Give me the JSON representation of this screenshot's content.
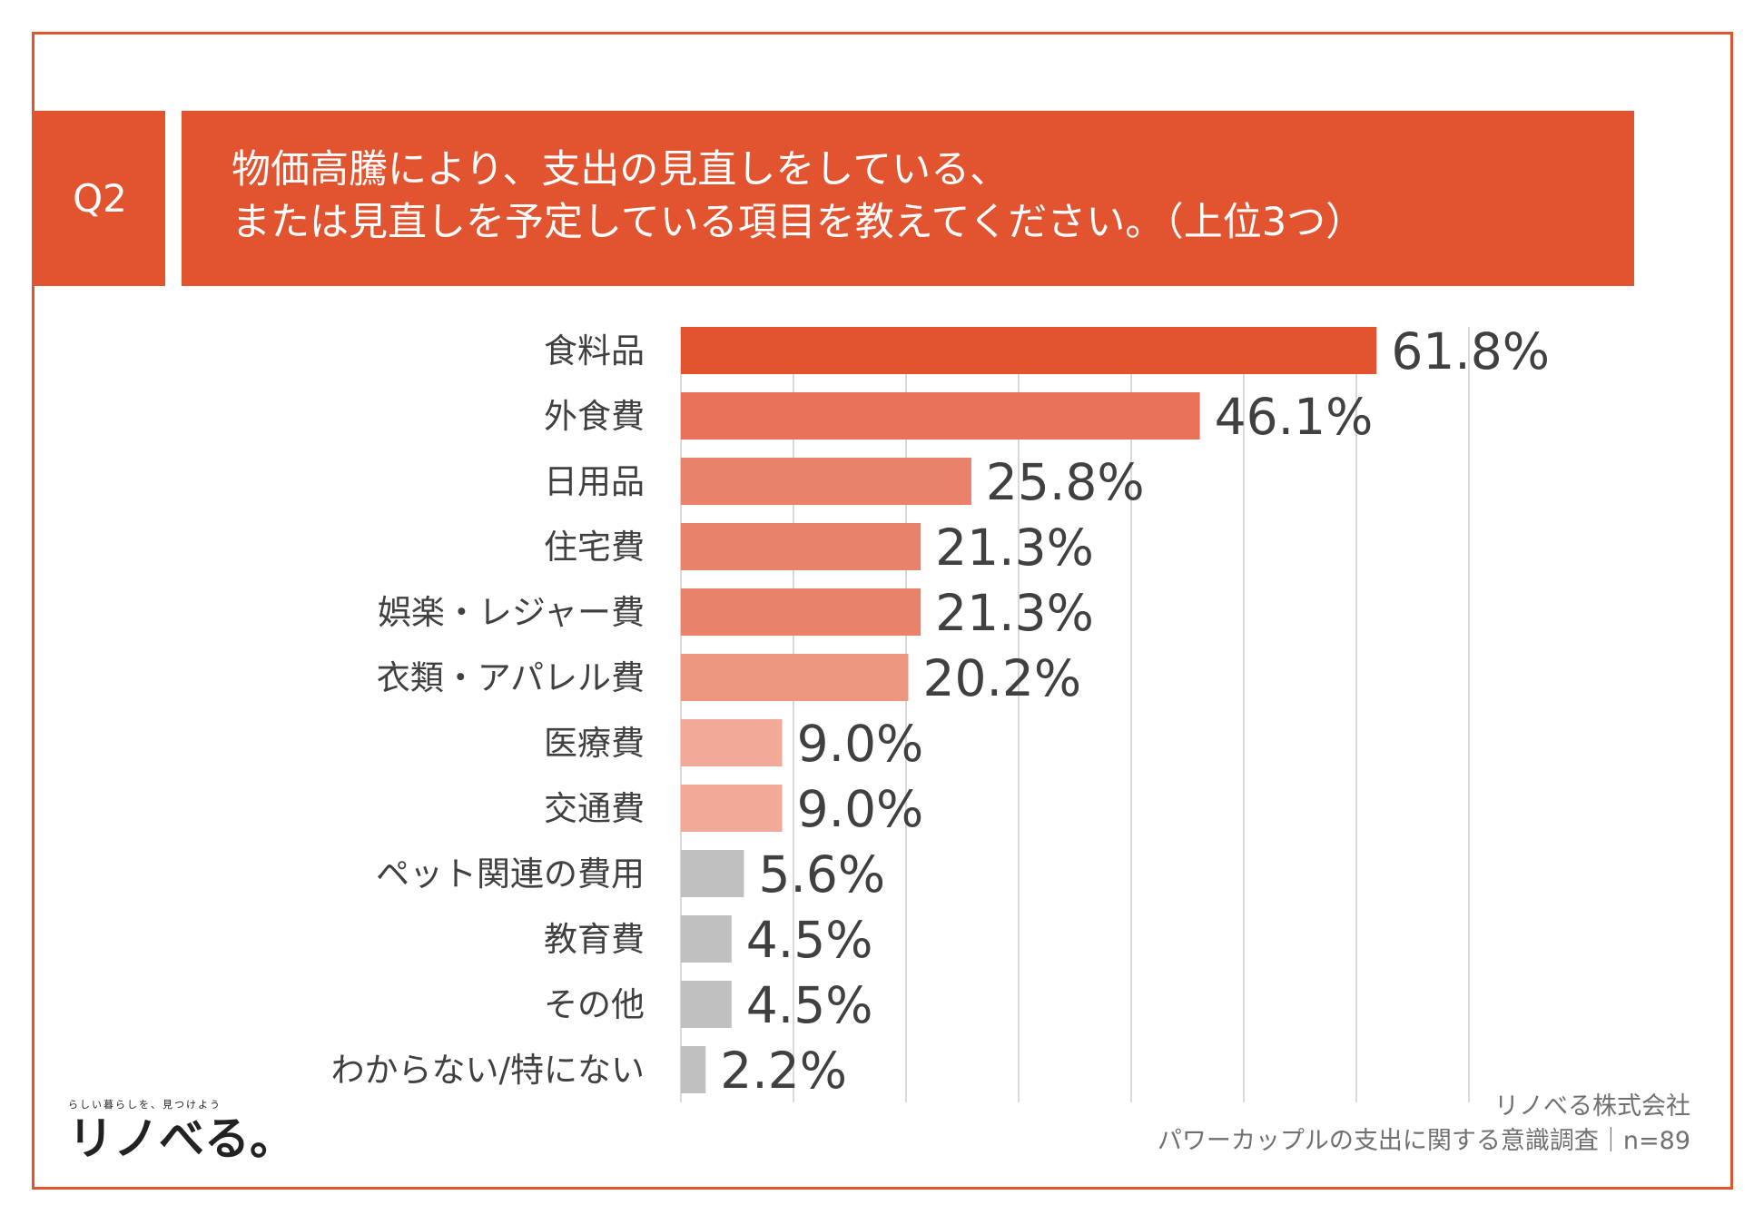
{
  "question": {
    "badge": "Q2",
    "line1": "物価高騰により、支出の見直しをしている、",
    "line2": "または見直しを予定している項目を教えてください。（上位3つ）"
  },
  "colors": {
    "accent": "#e2542f",
    "gray_bar": "#c0c0c0",
    "grid": "#d9d9d9"
  },
  "chart_data": {
    "type": "bar",
    "orientation": "horizontal",
    "title": "物価高騰により、支出の見直しをしている、または見直しを予定している項目を教えてください。（上位3つ）",
    "xlim": [
      0,
      70
    ],
    "grid": true,
    "unit": "%",
    "categories": [
      "食料品",
      "外食費",
      "日用品",
      "住宅費",
      "娯楽・レジャー費",
      "衣類・アパレル費",
      "医療費",
      "交通費",
      "ペット関連の費用",
      "教育費",
      "その他",
      "わからない/特にない"
    ],
    "values": [
      61.8,
      46.1,
      25.8,
      21.3,
      21.3,
      20.2,
      9.0,
      9.0,
      5.6,
      4.5,
      4.5,
      2.2
    ],
    "labels": [
      "61.8%",
      "46.1%",
      "25.8%",
      "21.3%",
      "21.3%",
      "20.2%",
      "9.0%",
      "9.0%",
      "5.6%",
      "4.5%",
      "4.5%",
      "2.2%"
    ],
    "bar_colors": [
      "#e2542f",
      "#e8735a",
      "#e8826a",
      "#e8826a",
      "#e8826a",
      "#ed9780",
      "#f2aa98",
      "#f2aa98",
      "#c0c0c0",
      "#c0c0c0",
      "#c0c0c0",
      "#c0c0c0"
    ]
  },
  "footer": {
    "company": "リノべる株式会社",
    "survey": "パワーカップルの支出に関する意識調査｜n=89"
  },
  "logo": {
    "tagline": "らしい暮らしを、見つけよう",
    "name": "リノべる。"
  }
}
